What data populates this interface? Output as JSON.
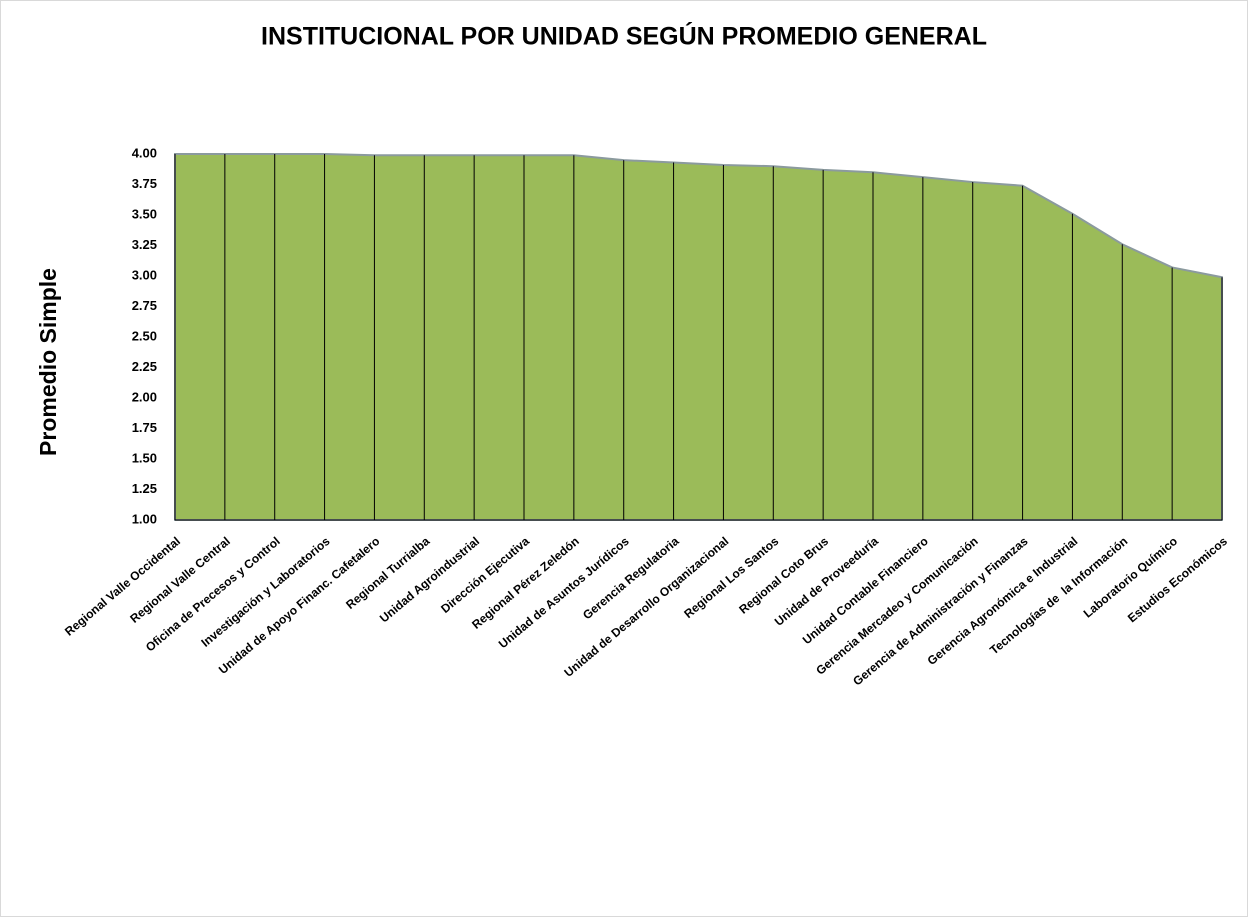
{
  "chart_data": {
    "type": "area",
    "title": "INSTITUCIONAL POR UNIDAD SEGÚN PROMEDIO GENERAL",
    "y_label": "Promedio Simple",
    "categories": [
      "Regional Valle Occidental",
      "Regional Valle Central",
      "Oficina de Precesos y Control",
      "Investigación y Laboratorios",
      "Unidad de Apoyo Financ. Cafetalero",
      "Regional Turrialba",
      "Unidad Agroindustrial",
      "Dirección Ejecutiva",
      "Regional Pérez Zeledón",
      "Unidad de Asuntos Jurídicos",
      "Gerencia Regulatoria",
      "Unidad de Desarrollo Organizacional",
      "Regional Los Santos",
      "Regional Coto Brus",
      "Unidad de Proveeduría",
      "Unidad Contable Financiero",
      "Gerencia Mercadeo y Comunicación",
      "Gerencia de Administración y Finanzas",
      "Gerencia Agronómica e Industrial",
      "Tecnologías de  la Información",
      "Laboratorio Químico",
      "Estudios Económicos"
    ],
    "values": [
      4.0,
      4.0,
      4.0,
      4.0,
      3.99,
      3.99,
      3.99,
      3.99,
      3.99,
      3.95,
      3.93,
      3.91,
      3.9,
      3.87,
      3.85,
      3.81,
      3.77,
      3.74,
      3.51,
      3.26,
      3.07,
      2.99
    ],
    "color": "#9bbb59",
    "ylim": [
      1,
      4
    ],
    "yticks": [
      {
        "value": 1,
        "label": "1.00"
      },
      {
        "value": 1.25,
        "label": "1.25"
      },
      {
        "value": 1.5,
        "label": "1.50"
      },
      {
        "value": 1.75,
        "label": "1.75"
      },
      {
        "value": 2,
        "label": "2.00"
      },
      {
        "value": 2.25,
        "label": "2.25"
      },
      {
        "value": 2.5,
        "label": "2.50"
      },
      {
        "value": 2.75,
        "label": "2.75"
      },
      {
        "value": 3,
        "label": "3.00"
      },
      {
        "value": 3.25,
        "label": "3.25"
      },
      {
        "value": 3.5,
        "label": "3.50"
      },
      {
        "value": 3.75,
        "label": "3.75"
      },
      {
        "value": 4,
        "label": "4.00"
      }
    ],
    "drop_lines": true
  }
}
